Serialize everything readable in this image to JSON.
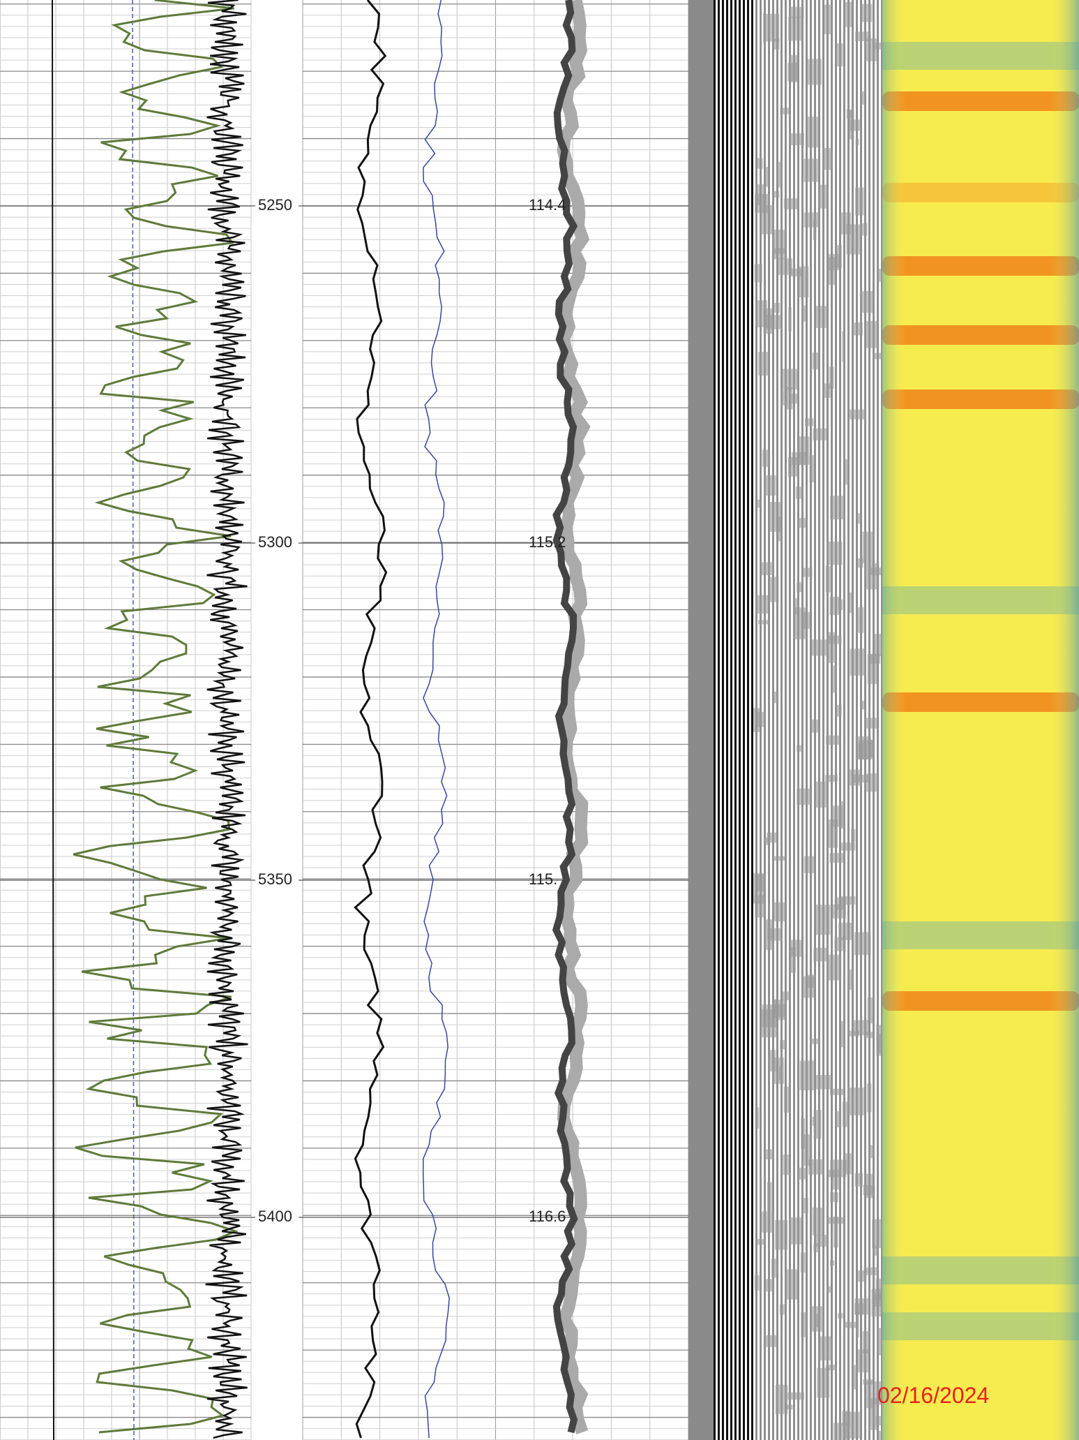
{
  "depth_labels": [
    "5250",
    "5300",
    "5350",
    "5400"
  ],
  "time_labels": [
    "114.4",
    "115.2",
    "115.",
    "116.6"
  ],
  "date": "02/16/2024"
}
